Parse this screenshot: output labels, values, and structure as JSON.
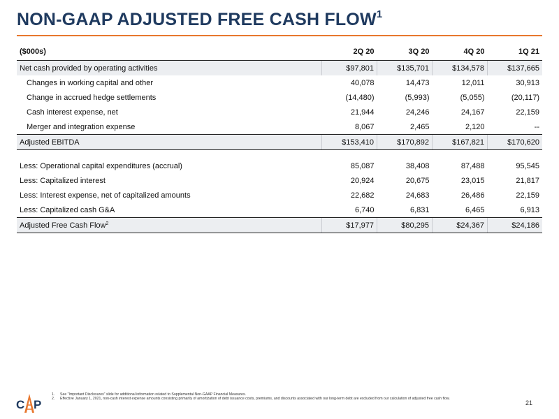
{
  "header": {
    "title": "NON-GAAP ADJUSTED FREE CASH FLOW",
    "title_sup": "1"
  },
  "table": {
    "unit_label": "($000s)",
    "periods": [
      "2Q 20",
      "3Q 20",
      "4Q 20",
      "1Q 21"
    ],
    "rows": [
      {
        "label": "Net cash provided by operating activities",
        "values": [
          "$97,801",
          "$135,701",
          "$134,578",
          "$137,665"
        ]
      },
      {
        "label": "Changes in working capital and other",
        "values": [
          "40,078",
          "14,473",
          "12,011",
          "30,913"
        ]
      },
      {
        "label": "Change in accrued hedge settlements",
        "values": [
          "(14,480)",
          "(5,993)",
          "(5,055)",
          "(20,117)"
        ]
      },
      {
        "label": "Cash interest expense, net",
        "values": [
          "21,944",
          "24,246",
          "24,167",
          "22,159"
        ]
      },
      {
        "label": "Merger and integration expense",
        "values": [
          "8,067",
          "2,465",
          "2,120",
          "--"
        ]
      },
      {
        "label": "Adjusted EBITDA",
        "values": [
          "$153,410",
          "$170,892",
          "$167,821",
          "$170,620"
        ]
      },
      {
        "label": "Less: Operational capital expenditures (accrual)",
        "values": [
          "85,087",
          "38,408",
          "87,488",
          "95,545"
        ]
      },
      {
        "label": "Less: Capitalized interest",
        "values": [
          "20,924",
          "20,675",
          "23,015",
          "21,817"
        ]
      },
      {
        "label": "Less: Interest expense, net of capitalized amounts",
        "values": [
          "22,682",
          "24,683",
          "26,486",
          "22,159"
        ]
      },
      {
        "label": "Less: Capitalized cash G&A",
        "values": [
          "6,740",
          "6,831",
          "6,465",
          "6,913"
        ]
      },
      {
        "label": "Adjusted Free Cash Flow",
        "label_sup": "2",
        "values": [
          "$17,977",
          "$80,295",
          "$24,367",
          "$24,186"
        ]
      }
    ]
  },
  "footnotes": [
    {
      "num": "1.",
      "text": "See \"Important Disclosures\" slide for additional information related to Supplemental Non-GAAP Financial Measures."
    },
    {
      "num": "2.",
      "text": "Effective January 1, 2021, non-cash interest expense amounts consisting primarily of amortization of debt issuance costs, premiums, and discounts associated with our long-term debt are excluded from our calculation of adjusted free cash flow."
    }
  ],
  "page_number": "21",
  "logo": {
    "icon": "derrick-logo-icon",
    "colors": {
      "navy": "#1f3a5f",
      "orange": "#e8772e"
    }
  }
}
